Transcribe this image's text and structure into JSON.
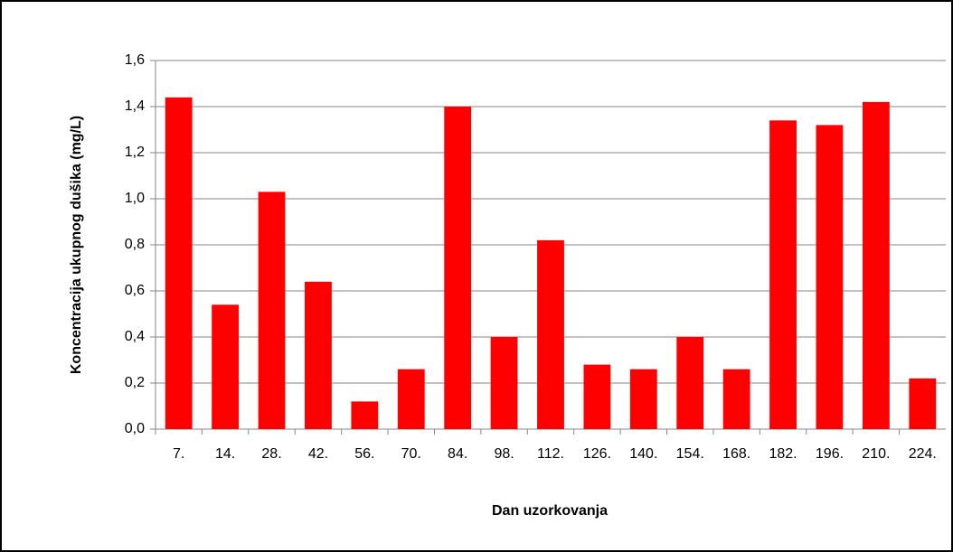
{
  "chart_data": {
    "type": "bar",
    "x_label": "Dan uzorkovanja",
    "y_label": "Koncentracija ukupnog dušika (mg/L)",
    "categories": [
      "7.",
      "14.",
      "28.",
      "42.",
      "56.",
      "70.",
      "84.",
      "98.",
      "112.",
      "126.",
      "140.",
      "154.",
      "168.",
      "182.",
      "196.",
      "210.",
      "224."
    ],
    "values": [
      1.44,
      0.54,
      1.03,
      0.64,
      0.12,
      0.26,
      1.4,
      0.4,
      0.82,
      0.28,
      0.26,
      0.4,
      0.26,
      1.34,
      1.32,
      1.42,
      0.22
    ],
    "color": "#ff0000",
    "ylim": [
      0,
      1.6
    ],
    "yticks": [
      {
        "value": 0,
        "label": "0,0"
      },
      {
        "value": 0.2,
        "label": "0,2"
      },
      {
        "value": 0.4,
        "label": "0,4"
      },
      {
        "value": 0.6,
        "label": "0,6"
      },
      {
        "value": 0.8,
        "label": "0,8"
      },
      {
        "value": 1.0,
        "label": "1,0"
      },
      {
        "value": 1.2,
        "label": "1,2"
      },
      {
        "value": 1.4,
        "label": "1,4"
      },
      {
        "value": 1.6,
        "label": "1,6"
      }
    ],
    "grid": true
  }
}
